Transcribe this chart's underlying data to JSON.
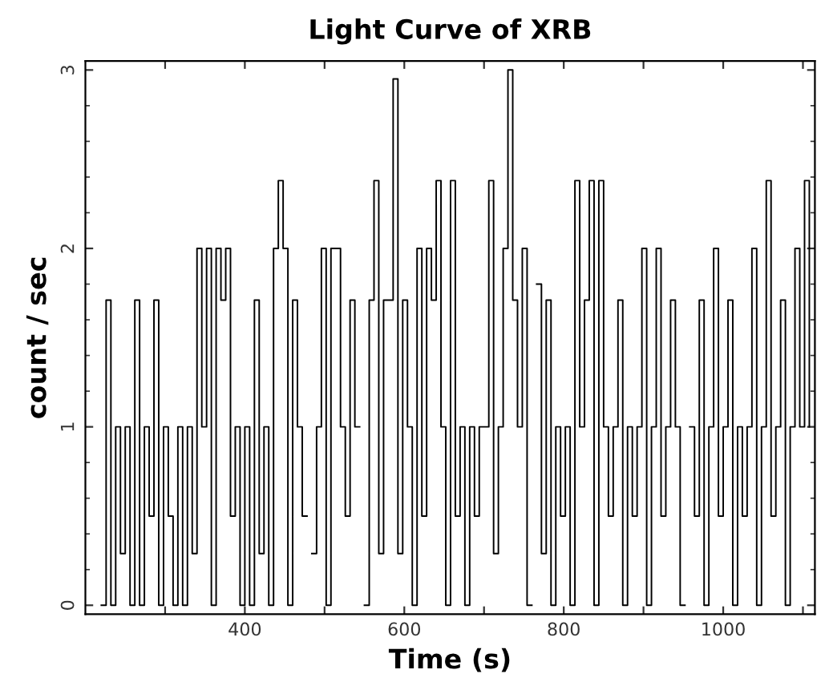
{
  "chart_data": {
    "type": "step",
    "title": "Light Curve of XRB",
    "xlabel": "Time (s)",
    "ylabel": "count / sec",
    "x": [
      220,
      226,
      232,
      238,
      244,
      250,
      256,
      262,
      268,
      274,
      280,
      286,
      292,
      298,
      304,
      310,
      316,
      322,
      328,
      334,
      340,
      346,
      352,
      358,
      364,
      370,
      376,
      382,
      388,
      394,
      400,
      406,
      412,
      418,
      424,
      430,
      436,
      442,
      448,
      454,
      460,
      466,
      472,
      478,
      484,
      490,
      496,
      502,
      508,
      514,
      520,
      526,
      532,
      538,
      544,
      550,
      556,
      562,
      568,
      574,
      580,
      586,
      592,
      598,
      604,
      610,
      616,
      622,
      628,
      634,
      640,
      646,
      652,
      658,
      664,
      670,
      676,
      682,
      688,
      694,
      700,
      706,
      712,
      718,
      724,
      730,
      736,
      742,
      748,
      754,
      760,
      766,
      772,
      778,
      784,
      790,
      796,
      802,
      808,
      814,
      820,
      826,
      832,
      838,
      844,
      850,
      856,
      862,
      868,
      874,
      880,
      886,
      892,
      898,
      904,
      910,
      916,
      922,
      928,
      934,
      940,
      946,
      952,
      958,
      964,
      970,
      976,
      982,
      988,
      994,
      1000,
      1006,
      1012,
      1018,
      1024,
      1030,
      1036,
      1042,
      1048,
      1054,
      1060,
      1066,
      1072,
      1078,
      1084,
      1090,
      1096,
      1102,
      1108
    ],
    "series": [
      {
        "color": "#000000",
        "values": [
          0,
          1.71,
          0,
          1,
          0.29,
          1,
          0,
          1.71,
          0,
          1,
          0.5,
          1.71,
          0,
          1,
          0.5,
          0,
          1,
          0,
          1,
          0.29,
          2,
          1,
          2,
          0,
          2,
          1.71,
          2,
          0.5,
          1,
          0,
          1,
          0,
          1.71,
          0.29,
          1,
          0,
          2,
          2.38,
          2,
          0,
          1.71,
          1,
          0.5,
          null,
          0.29,
          1,
          2,
          0,
          2,
          2,
          1,
          0.5,
          1.71,
          1,
          null,
          0,
          1.71,
          2.38,
          0.29,
          1.71,
          1.71,
          2.95,
          0.29,
          1.71,
          1,
          0,
          2,
          0.5,
          2,
          1.71,
          2.38,
          1,
          0,
          2.38,
          0.5,
          1,
          0,
          1,
          0.5,
          1,
          1,
          2.38,
          0.29,
          1,
          2,
          3.0,
          1.71,
          1,
          2,
          0,
          null,
          1.8,
          0.29,
          1.71,
          0,
          1,
          0.5,
          1,
          0,
          2.38,
          1,
          1.71,
          2.38,
          0,
          2.38,
          1,
          0.5,
          1,
          1.71,
          0,
          1,
          0.5,
          1,
          2,
          0,
          1,
          2,
          0.5,
          1,
          1.71,
          1,
          0,
          null,
          1,
          0.5,
          1.71,
          0,
          1,
          2,
          0.5,
          1,
          1.71,
          0,
          1,
          0.5,
          1,
          2,
          0,
          1,
          2.38,
          0.5,
          1,
          1.71,
          0,
          1,
          2,
          1,
          2.38,
          1
        ]
      }
    ],
    "xlim": [
      200,
      1115
    ],
    "ylim": [
      -0.05,
      3.05
    ],
    "xticks": [
      {
        "value": 300,
        "label": null
      },
      400,
      {
        "value": 500,
        "label": null
      },
      600,
      {
        "value": 700,
        "label": null
      },
      800,
      {
        "value": 900,
        "label": null
      },
      1000,
      {
        "value": 1100,
        "label": null
      }
    ],
    "yticks": [
      0,
      1,
      2,
      3
    ],
    "grid": false,
    "legend": false
  }
}
